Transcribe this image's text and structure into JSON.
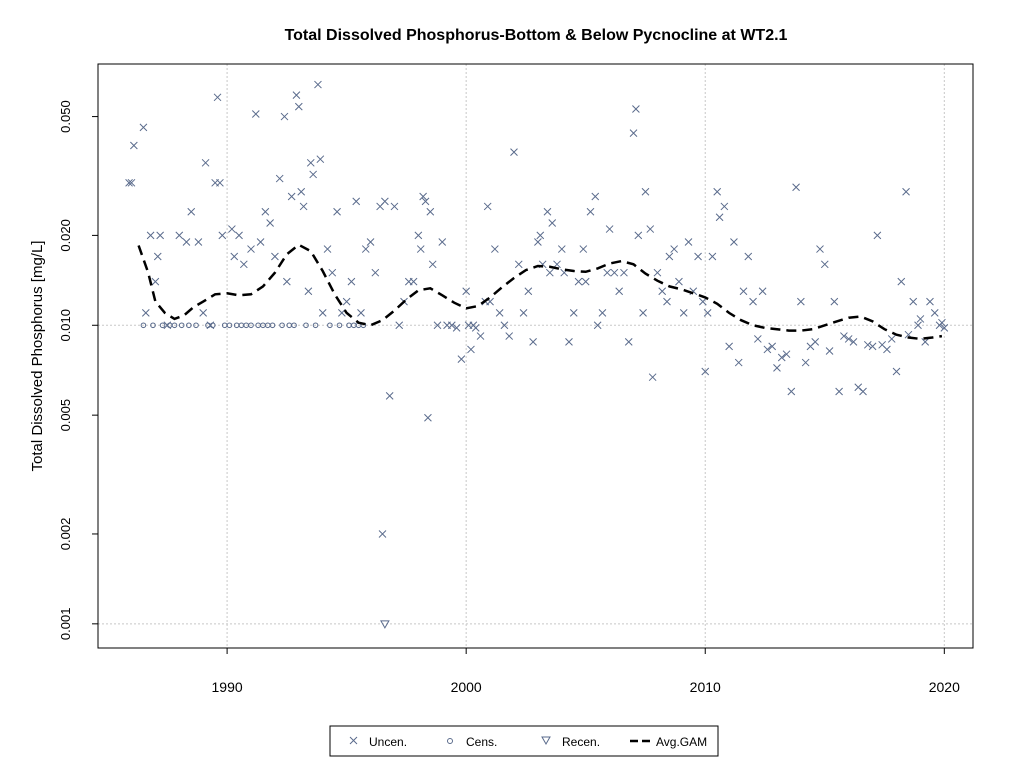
{
  "chart_data": {
    "type": "scatter",
    "title": "Total Dissolved Phosphorus-Bottom & Below Pycnocline at WT2.1",
    "ylabel": "Total Dissolved Phosphorus [mg/L]",
    "xlabel": "",
    "x_scale": "linear",
    "y_scale": "log",
    "xlim": [
      1984.6,
      2021.2
    ],
    "ylim": [
      0.00083,
      0.075
    ],
    "x_ticks": [
      1990,
      2000,
      2010,
      2020
    ],
    "x_tick_labels": [
      "1990",
      "2000",
      "2010",
      "2020"
    ],
    "y_ticks": [
      0.001,
      0.002,
      0.005,
      0.01,
      0.02,
      0.05
    ],
    "y_tick_labels": [
      "0.001",
      "0.002",
      "0.005",
      "0.010",
      "0.020",
      "0.050"
    ],
    "reference_lines_y": [
      0.01,
      0.001
    ],
    "grid": true,
    "legend_position": "bottom",
    "colors": {
      "points": "#5a6b8c",
      "gam": "#000000",
      "grid": "#c8c8c8"
    },
    "series": [
      {
        "name": "Uncen.",
        "marker": "x",
        "points": [
          [
            1985.9,
            0.03
          ],
          [
            1986.0,
            0.03
          ],
          [
            1986.1,
            0.04
          ],
          [
            1986.5,
            0.046
          ],
          [
            1986.6,
            0.011
          ],
          [
            1986.8,
            0.02
          ],
          [
            1987.0,
            0.014
          ],
          [
            1987.1,
            0.017
          ],
          [
            1987.2,
            0.02
          ],
          [
            1987.5,
            0.01
          ],
          [
            1988.0,
            0.02
          ],
          [
            1988.3,
            0.019
          ],
          [
            1988.5,
            0.024
          ],
          [
            1988.8,
            0.019
          ],
          [
            1989.0,
            0.011
          ],
          [
            1989.1,
            0.035
          ],
          [
            1989.3,
            0.01
          ],
          [
            1989.5,
            0.03
          ],
          [
            1989.6,
            0.058
          ],
          [
            1989.7,
            0.03
          ],
          [
            1989.8,
            0.02
          ],
          [
            1990.2,
            0.021
          ],
          [
            1990.3,
            0.017
          ],
          [
            1990.5,
            0.02
          ],
          [
            1990.7,
            0.016
          ],
          [
            1991.0,
            0.018
          ],
          [
            1991.2,
            0.051
          ],
          [
            1991.4,
            0.019
          ],
          [
            1991.6,
            0.024
          ],
          [
            1991.8,
            0.022
          ],
          [
            1992.0,
            0.017
          ],
          [
            1992.2,
            0.031
          ],
          [
            1992.4,
            0.05
          ],
          [
            1992.5,
            0.014
          ],
          [
            1992.7,
            0.027
          ],
          [
            1992.9,
            0.059
          ],
          [
            1993.0,
            0.054
          ],
          [
            1993.1,
            0.028
          ],
          [
            1993.2,
            0.025
          ],
          [
            1993.4,
            0.013
          ],
          [
            1993.5,
            0.035
          ],
          [
            1993.6,
            0.032
          ],
          [
            1993.8,
            0.064
          ],
          [
            1993.9,
            0.036
          ],
          [
            1994.0,
            0.011
          ],
          [
            1994.2,
            0.018
          ],
          [
            1994.4,
            0.015
          ],
          [
            1994.6,
            0.024
          ],
          [
            1994.8,
            0.011
          ],
          [
            1995.0,
            0.012
          ],
          [
            1995.2,
            0.014
          ],
          [
            1995.4,
            0.026
          ],
          [
            1995.6,
            0.011
          ],
          [
            1995.8,
            0.018
          ],
          [
            1996.0,
            0.019
          ],
          [
            1996.2,
            0.015
          ],
          [
            1996.4,
            0.025
          ],
          [
            1996.5,
            0.002
          ],
          [
            1996.6,
            0.026
          ],
          [
            1996.8,
            0.0058
          ],
          [
            1997.0,
            0.025
          ],
          [
            1997.2,
            0.01
          ],
          [
            1997.4,
            0.012
          ],
          [
            1997.6,
            0.014
          ],
          [
            1997.8,
            0.014
          ],
          [
            1998.0,
            0.02
          ],
          [
            1998.1,
            0.018
          ],
          [
            1998.2,
            0.027
          ],
          [
            1998.3,
            0.026
          ],
          [
            1998.4,
            0.0049
          ],
          [
            1998.5,
            0.024
          ],
          [
            1998.6,
            0.016
          ],
          [
            1998.8,
            0.01
          ],
          [
            1999.0,
            0.019
          ],
          [
            1999.2,
            0.01
          ],
          [
            1999.4,
            0.01
          ],
          [
            1999.6,
            0.0098
          ],
          [
            1999.8,
            0.0077
          ],
          [
            2000.0,
            0.013
          ],
          [
            2000.1,
            0.01
          ],
          [
            2000.2,
            0.0083
          ],
          [
            2000.3,
            0.01
          ],
          [
            2000.4,
            0.0098
          ],
          [
            2000.6,
            0.0092
          ],
          [
            2000.8,
            0.012
          ],
          [
            2000.9,
            0.025
          ],
          [
            2001.0,
            0.012
          ],
          [
            2001.2,
            0.018
          ],
          [
            2001.4,
            0.011
          ],
          [
            2001.6,
            0.01
          ],
          [
            2001.8,
            0.0092
          ],
          [
            2002.0,
            0.038
          ],
          [
            2002.2,
            0.016
          ],
          [
            2002.4,
            0.011
          ],
          [
            2002.6,
            0.013
          ],
          [
            2002.8,
            0.0088
          ],
          [
            2003.0,
            0.019
          ],
          [
            2003.1,
            0.02
          ],
          [
            2003.2,
            0.016
          ],
          [
            2003.4,
            0.024
          ],
          [
            2003.5,
            0.015
          ],
          [
            2003.6,
            0.022
          ],
          [
            2003.8,
            0.016
          ],
          [
            2004.0,
            0.018
          ],
          [
            2004.1,
            0.015
          ],
          [
            2004.3,
            0.0088
          ],
          [
            2004.5,
            0.011
          ],
          [
            2004.7,
            0.014
          ],
          [
            2004.9,
            0.018
          ],
          [
            2005.0,
            0.014
          ],
          [
            2005.2,
            0.024
          ],
          [
            2005.4,
            0.027
          ],
          [
            2005.5,
            0.01
          ],
          [
            2005.7,
            0.011
          ],
          [
            2005.9,
            0.015
          ],
          [
            2006.0,
            0.021
          ],
          [
            2006.2,
            0.015
          ],
          [
            2006.4,
            0.013
          ],
          [
            2006.6,
            0.015
          ],
          [
            2006.8,
            0.0088
          ],
          [
            2007.0,
            0.044
          ],
          [
            2007.1,
            0.053
          ],
          [
            2007.2,
            0.02
          ],
          [
            2007.4,
            0.011
          ],
          [
            2007.5,
            0.028
          ],
          [
            2007.7,
            0.021
          ],
          [
            2007.8,
            0.0067
          ],
          [
            2008.0,
            0.015
          ],
          [
            2008.2,
            0.013
          ],
          [
            2008.4,
            0.012
          ],
          [
            2008.5,
            0.017
          ],
          [
            2008.7,
            0.018
          ],
          [
            2008.9,
            0.014
          ],
          [
            2009.1,
            0.011
          ],
          [
            2009.3,
            0.019
          ],
          [
            2009.5,
            0.013
          ],
          [
            2009.7,
            0.017
          ],
          [
            2009.9,
            0.012
          ],
          [
            2010.0,
            0.007
          ],
          [
            2010.1,
            0.011
          ],
          [
            2010.3,
            0.017
          ],
          [
            2010.5,
            0.028
          ],
          [
            2010.6,
            0.023
          ],
          [
            2010.8,
            0.025
          ],
          [
            2011.0,
            0.0085
          ],
          [
            2011.2,
            0.019
          ],
          [
            2011.4,
            0.0075
          ],
          [
            2011.6,
            0.013
          ],
          [
            2011.8,
            0.017
          ],
          [
            2012.0,
            0.012
          ],
          [
            2012.2,
            0.009
          ],
          [
            2012.4,
            0.013
          ],
          [
            2012.6,
            0.0083
          ],
          [
            2012.8,
            0.0085
          ],
          [
            2013.0,
            0.0072
          ],
          [
            2013.2,
            0.0078
          ],
          [
            2013.4,
            0.008
          ],
          [
            2013.6,
            0.006
          ],
          [
            2013.8,
            0.029
          ],
          [
            2014.0,
            0.012
          ],
          [
            2014.2,
            0.0075
          ],
          [
            2014.4,
            0.0085
          ],
          [
            2014.6,
            0.0088
          ],
          [
            2014.8,
            0.018
          ],
          [
            2015.0,
            0.016
          ],
          [
            2015.2,
            0.0082
          ],
          [
            2015.4,
            0.012
          ],
          [
            2015.6,
            0.006
          ],
          [
            2015.8,
            0.0092
          ],
          [
            2016.0,
            0.009
          ],
          [
            2016.2,
            0.0088
          ],
          [
            2016.4,
            0.0062
          ],
          [
            2016.6,
            0.006
          ],
          [
            2016.8,
            0.0086
          ],
          [
            2017.0,
            0.0085
          ],
          [
            2017.2,
            0.02
          ],
          [
            2017.4,
            0.0086
          ],
          [
            2017.6,
            0.0083
          ],
          [
            2017.8,
            0.009
          ],
          [
            2018.0,
            0.007
          ],
          [
            2018.2,
            0.014
          ],
          [
            2018.4,
            0.028
          ],
          [
            2018.5,
            0.0093
          ],
          [
            2018.7,
            0.012
          ],
          [
            2018.9,
            0.01
          ],
          [
            2019.0,
            0.0105
          ],
          [
            2019.2,
            0.0088
          ],
          [
            2019.4,
            0.012
          ],
          [
            2019.6,
            0.011
          ],
          [
            2019.8,
            0.01
          ],
          [
            2019.9,
            0.0102
          ],
          [
            2020.0,
            0.0098
          ]
        ]
      },
      {
        "name": "Cens.",
        "marker": "o",
        "points": [
          [
            1986.5,
            0.01
          ],
          [
            1986.9,
            0.01
          ],
          [
            1987.3,
            0.01
          ],
          [
            1987.6,
            0.01
          ],
          [
            1987.8,
            0.01
          ],
          [
            1988.1,
            0.01
          ],
          [
            1988.4,
            0.01
          ],
          [
            1988.7,
            0.01
          ],
          [
            1989.2,
            0.01
          ],
          [
            1989.4,
            0.01
          ],
          [
            1989.9,
            0.01
          ],
          [
            1990.1,
            0.01
          ],
          [
            1990.4,
            0.01
          ],
          [
            1990.6,
            0.01
          ],
          [
            1990.8,
            0.01
          ],
          [
            1991.0,
            0.01
          ],
          [
            1991.3,
            0.01
          ],
          [
            1991.5,
            0.01
          ],
          [
            1991.7,
            0.01
          ],
          [
            1991.9,
            0.01
          ],
          [
            1992.3,
            0.01
          ],
          [
            1992.6,
            0.01
          ],
          [
            1992.8,
            0.01
          ],
          [
            1993.3,
            0.01
          ],
          [
            1993.7,
            0.01
          ],
          [
            1994.3,
            0.01
          ],
          [
            1994.7,
            0.01
          ],
          [
            1995.1,
            0.01
          ],
          [
            1995.3,
            0.01
          ],
          [
            1995.5,
            0.01
          ],
          [
            1995.7,
            0.01
          ]
        ]
      },
      {
        "name": "Recen.",
        "marker": "triangle-down",
        "points": [
          [
            1996.6,
            0.001
          ]
        ]
      }
    ],
    "gam": {
      "name": "Avg.GAM",
      "style": "dashed",
      "points": [
        [
          1986.3,
          0.0185
        ],
        [
          1986.7,
          0.015
        ],
        [
          1987.0,
          0.012
        ],
        [
          1987.4,
          0.011
        ],
        [
          1987.8,
          0.0105
        ],
        [
          1988.2,
          0.0108
        ],
        [
          1988.6,
          0.0115
        ],
        [
          1989.0,
          0.012
        ],
        [
          1989.5,
          0.0127
        ],
        [
          1990.0,
          0.0128
        ],
        [
          1990.5,
          0.0126
        ],
        [
          1991.0,
          0.0127
        ],
        [
          1991.5,
          0.0135
        ],
        [
          1992.0,
          0.015
        ],
        [
          1992.5,
          0.0173
        ],
        [
          1993.0,
          0.0186
        ],
        [
          1993.5,
          0.0177
        ],
        [
          1994.0,
          0.0152
        ],
        [
          1994.5,
          0.0127
        ],
        [
          1995.0,
          0.011
        ],
        [
          1995.5,
          0.0102
        ],
        [
          1996.0,
          0.01
        ],
        [
          1996.5,
          0.0104
        ],
        [
          1997.0,
          0.0112
        ],
        [
          1997.5,
          0.0122
        ],
        [
          1998.0,
          0.0131
        ],
        [
          1998.5,
          0.0133
        ],
        [
          1999.0,
          0.0126
        ],
        [
          1999.5,
          0.0119
        ],
        [
          2000.0,
          0.0114
        ],
        [
          2000.5,
          0.0116
        ],
        [
          2001.0,
          0.0124
        ],
        [
          2001.5,
          0.0134
        ],
        [
          2002.0,
          0.0144
        ],
        [
          2002.5,
          0.0153
        ],
        [
          2003.0,
          0.0158
        ],
        [
          2003.5,
          0.0157
        ],
        [
          2004.0,
          0.0154
        ],
        [
          2004.5,
          0.0152
        ],
        [
          2005.0,
          0.0151
        ],
        [
          2005.5,
          0.0155
        ],
        [
          2006.0,
          0.0161
        ],
        [
          2006.5,
          0.0164
        ],
        [
          2007.0,
          0.016
        ],
        [
          2007.5,
          0.0149
        ],
        [
          2008.0,
          0.0141
        ],
        [
          2008.5,
          0.0135
        ],
        [
          2009.0,
          0.0132
        ],
        [
          2009.5,
          0.0128
        ],
        [
          2010.0,
          0.0124
        ],
        [
          2010.5,
          0.0118
        ],
        [
          2011.0,
          0.011
        ],
        [
          2011.5,
          0.0104
        ],
        [
          2012.0,
          0.01
        ],
        [
          2012.5,
          0.0098
        ],
        [
          2013.0,
          0.0097
        ],
        [
          2013.5,
          0.0096
        ],
        [
          2014.0,
          0.0096
        ],
        [
          2014.5,
          0.0097
        ],
        [
          2015.0,
          0.01
        ],
        [
          2015.5,
          0.0103
        ],
        [
          2016.0,
          0.0106
        ],
        [
          2016.5,
          0.0107
        ],
        [
          2017.0,
          0.0103
        ],
        [
          2017.5,
          0.0097
        ],
        [
          2018.0,
          0.0093
        ],
        [
          2018.5,
          0.0091
        ],
        [
          2019.0,
          0.009
        ],
        [
          2019.5,
          0.0091
        ],
        [
          2019.9,
          0.0092
        ]
      ]
    }
  }
}
